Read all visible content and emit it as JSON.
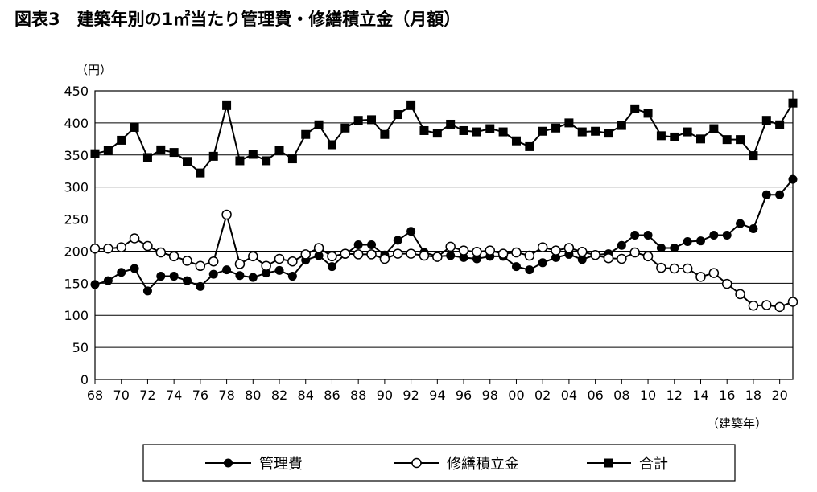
{
  "title": "図表3　建築年別の1㎡当たり管理費・修繕積立金（月額）",
  "chart_data": {
    "type": "line",
    "title": "図表3　建築年別の1㎡当たり管理費・修繕積立金（月額）",
    "ylabel": "（円）",
    "xlabel": "（建築年）",
    "ylim": [
      0,
      450
    ],
    "yticks": [
      0,
      50,
      100,
      150,
      200,
      250,
      300,
      350,
      400,
      450
    ],
    "x_tick_labels": [
      "68",
      "70",
      "72",
      "74",
      "76",
      "78",
      "80",
      "82",
      "84",
      "86",
      "88",
      "90",
      "92",
      "94",
      "96",
      "98",
      "00",
      "02",
      "04",
      "06",
      "08",
      "10",
      "12",
      "14",
      "16",
      "18",
      "20"
    ],
    "grid": true,
    "legend_position": "bottom",
    "x": [
      1968,
      1969,
      1970,
      1971,
      1972,
      1973,
      1974,
      1975,
      1976,
      1977,
      1978,
      1979,
      1980,
      1981,
      1982,
      1983,
      1984,
      1985,
      1986,
      1987,
      1988,
      1989,
      1990,
      1991,
      1992,
      1993,
      1994,
      1995,
      1996,
      1997,
      1998,
      1999,
      2000,
      2001,
      2002,
      2003,
      2004,
      2005,
      2006,
      2007,
      2008,
      2009,
      2010,
      2011,
      2012,
      2013,
      2014,
      2015,
      2016,
      2017,
      2018,
      2019,
      2020,
      2021
    ],
    "series": [
      {
        "name": "管理費",
        "marker": "filled-circle",
        "values": [
          148,
          154,
          167,
          173,
          138,
          161,
          161,
          154,
          145,
          164,
          171,
          162,
          159,
          166,
          170,
          161,
          186,
          193,
          176,
          195,
          210,
          210,
          194,
          217,
          231,
          198,
          192,
          193,
          190,
          188,
          192,
          192,
          176,
          171,
          182,
          190,
          195,
          187,
          194,
          196,
          209,
          225,
          225,
          205,
          205,
          215,
          216,
          225,
          225,
          243,
          235,
          288,
          288,
          312
        ]
      },
      {
        "name": "修繕積立金",
        "marker": "open-circle",
        "values": [
          204,
          204,
          206,
          220,
          208,
          198,
          192,
          185,
          177,
          184,
          257,
          180,
          192,
          177,
          188,
          184,
          195,
          205,
          192,
          196,
          195,
          195,
          188,
          196,
          196,
          193,
          191,
          207,
          201,
          199,
          201,
          196,
          198,
          193,
          206,
          201,
          205,
          199,
          194,
          189,
          188,
          198,
          192,
          174,
          173,
          173,
          160,
          166,
          149,
          133,
          115,
          116,
          113,
          121
        ]
      },
      {
        "name": "合計",
        "marker": "filled-square",
        "values": [
          352,
          357,
          373,
          393,
          346,
          358,
          354,
          340,
          322,
          348,
          427,
          341,
          351,
          341,
          357,
          344,
          382,
          397,
          366,
          392,
          404,
          405,
          382,
          413,
          427,
          388,
          384,
          398,
          388,
          386,
          391,
          386,
          372,
          363,
          387,
          392,
          400,
          386,
          387,
          384,
          396,
          422,
          415,
          380,
          378,
          386,
          375,
          391,
          374,
          374,
          349,
          404,
          397,
          431
        ]
      }
    ]
  }
}
